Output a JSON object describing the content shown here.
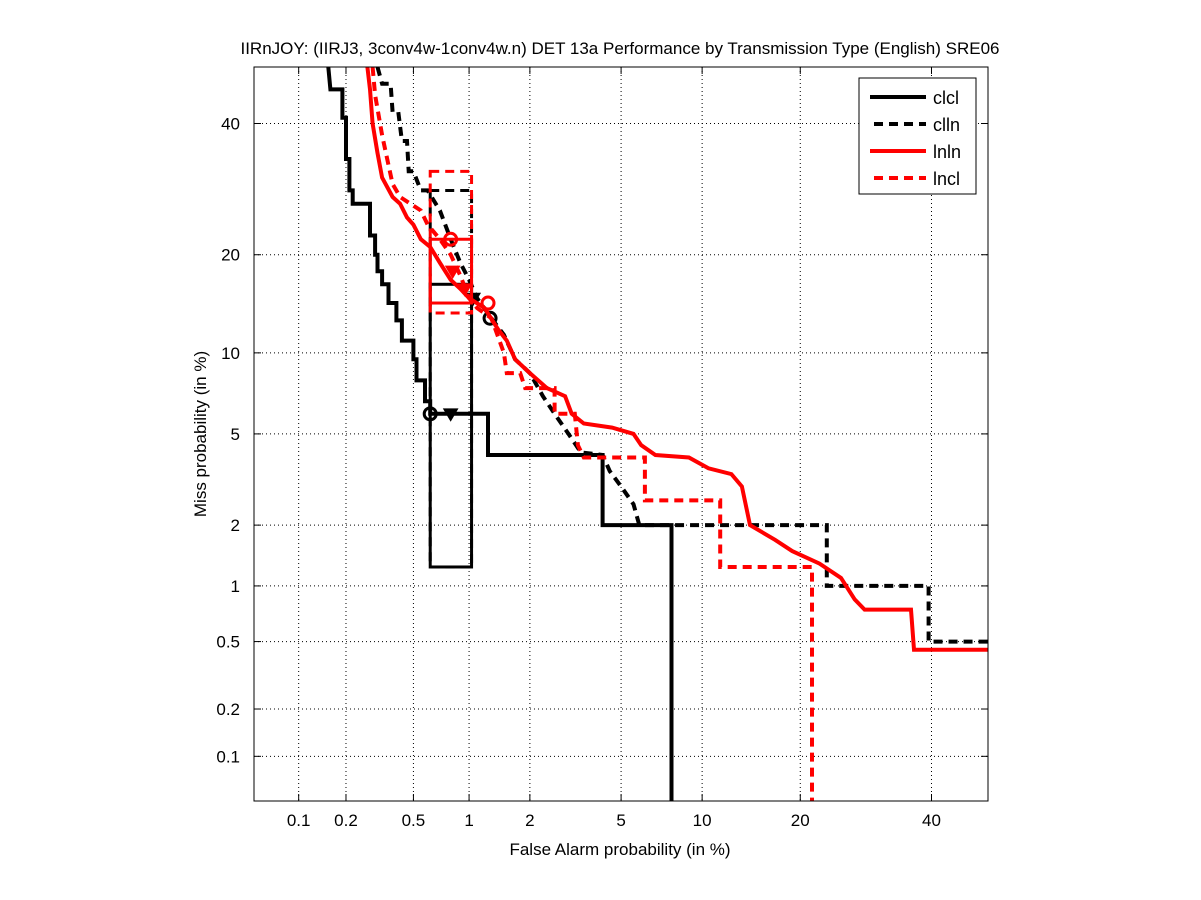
{
  "chart_data": {
    "type": "line",
    "title": "IIRnJOY: (IIRJ3, 3conv4w-1conv4w.n) DET 13a Performance by Transmission Type (English) SRE06",
    "xlabel": "False Alarm probability (in %)",
    "ylabel": "Miss probability (in %)",
    "xscale": "probit",
    "yscale": "probit",
    "xlim": [
      0.05,
      50
    ],
    "ylim": [
      0.05,
      50
    ],
    "grid": true,
    "legend_position": "top-right",
    "xticks": [
      0.1,
      0.2,
      0.5,
      1,
      2,
      5,
      10,
      20,
      40
    ],
    "xtick_labels": [
      "0.1",
      "0.2",
      "0.5",
      "1",
      "2",
      "5",
      "10",
      "20",
      "40"
    ],
    "yticks": [
      0.1,
      0.2,
      0.5,
      1,
      2,
      5,
      10,
      20,
      40
    ],
    "ytick_labels": [
      "0.1",
      "0.2",
      "0.5",
      "1",
      "2",
      "5",
      "10",
      "20",
      "40"
    ],
    "series": [
      {
        "name": "clcl",
        "color": "#000000",
        "dash": "solid",
        "points": [
          [
            0.155,
            50
          ],
          [
            0.16,
            46
          ],
          [
            0.19,
            46
          ],
          [
            0.19,
            41
          ],
          [
            0.2,
            41
          ],
          [
            0.2,
            34
          ],
          [
            0.21,
            34
          ],
          [
            0.21,
            29
          ],
          [
            0.22,
            29
          ],
          [
            0.22,
            27
          ],
          [
            0.28,
            27
          ],
          [
            0.28,
            22.5
          ],
          [
            0.3,
            22.5
          ],
          [
            0.3,
            20
          ],
          [
            0.31,
            20
          ],
          [
            0.31,
            18
          ],
          [
            0.33,
            18
          ],
          [
            0.33,
            16.5
          ],
          [
            0.36,
            16.5
          ],
          [
            0.36,
            14.5
          ],
          [
            0.4,
            14.5
          ],
          [
            0.4,
            12.8
          ],
          [
            0.43,
            12.8
          ],
          [
            0.43,
            11
          ],
          [
            0.5,
            11
          ],
          [
            0.5,
            9.5
          ],
          [
            0.52,
            9.5
          ],
          [
            0.52,
            8
          ],
          [
            0.58,
            8
          ],
          [
            0.58,
            6.7
          ],
          [
            0.62,
            6.7
          ],
          [
            0.62,
            6
          ],
          [
            1.25,
            6
          ],
          [
            1.25,
            4.1
          ],
          [
            4.2,
            4.1
          ],
          [
            4.2,
            2
          ],
          [
            7.8,
            2
          ],
          [
            7.8,
            0.05
          ]
        ],
        "markers": [
          {
            "x": 0.62,
            "y": 6,
            "shape": "circle"
          },
          {
            "x": 0.8,
            "y": 6,
            "shape": "triangle-down"
          }
        ],
        "confidence_box": {
          "x": [
            0.62,
            1.03
          ],
          "y": [
            1.25,
            16.5
          ]
        }
      },
      {
        "name": "clln",
        "color": "#000000",
        "dash": "dashed",
        "points": [
          [
            0.31,
            50
          ],
          [
            0.33,
            47
          ],
          [
            0.37,
            47
          ],
          [
            0.38,
            42
          ],
          [
            0.41,
            42
          ],
          [
            0.43,
            37
          ],
          [
            0.46,
            37
          ],
          [
            0.47,
            32
          ],
          [
            0.5,
            32
          ],
          [
            0.55,
            29
          ],
          [
            0.6,
            29
          ],
          [
            0.7,
            26
          ],
          [
            0.8,
            22
          ],
          [
            0.9,
            19
          ],
          [
            1.0,
            17
          ],
          [
            1.1,
            15
          ],
          [
            1.3,
            13
          ],
          [
            1.5,
            11.5
          ],
          [
            1.7,
            9.5
          ],
          [
            2.0,
            8.5
          ],
          [
            2.3,
            7
          ],
          [
            2.6,
            6
          ],
          [
            3.0,
            5
          ],
          [
            3.4,
            4.2
          ],
          [
            4.2,
            4.1
          ],
          [
            4.5,
            3.5
          ],
          [
            5.0,
            3
          ],
          [
            5.6,
            2.5
          ],
          [
            5.9,
            2
          ],
          [
            23.5,
            2
          ],
          [
            23.5,
            1.0
          ],
          [
            39.5,
            1.0
          ],
          [
            39.5,
            0.5
          ],
          [
            50,
            0.5
          ]
        ],
        "markers": [
          {
            "x": 1.28,
            "y": 13,
            "shape": "circle"
          },
          {
            "x": 1.05,
            "y": 15,
            "shape": "triangle-down"
          }
        ],
        "confidence_box": {
          "x": [
            0.62,
            1.03
          ],
          "y": [
            1.25,
            29
          ]
        }
      },
      {
        "name": "lnln",
        "color": "#ff0000",
        "dash": "solid",
        "points": [
          [
            0.27,
            50
          ],
          [
            0.28,
            46
          ],
          [
            0.29,
            40
          ],
          [
            0.31,
            35
          ],
          [
            0.33,
            31
          ],
          [
            0.38,
            28
          ],
          [
            0.42,
            27
          ],
          [
            0.46,
            25
          ],
          [
            0.5,
            24
          ],
          [
            0.55,
            22
          ],
          [
            0.62,
            21
          ],
          [
            0.7,
            19
          ],
          [
            0.8,
            17
          ],
          [
            0.9,
            16
          ],
          [
            1.0,
            15
          ],
          [
            1.2,
            14
          ],
          [
            1.4,
            12
          ],
          [
            1.55,
            11
          ],
          [
            1.7,
            9.5
          ],
          [
            2.0,
            8.5
          ],
          [
            2.4,
            7.5
          ],
          [
            2.9,
            7
          ],
          [
            3.1,
            6
          ],
          [
            3.5,
            5.5
          ],
          [
            4.6,
            5.3
          ],
          [
            5.6,
            5
          ],
          [
            6.0,
            4.5
          ],
          [
            6.8,
            4.1
          ],
          [
            9.0,
            4
          ],
          [
            10.5,
            3.6
          ],
          [
            12.5,
            3.4
          ],
          [
            13.5,
            3
          ],
          [
            14.3,
            2
          ],
          [
            17,
            1.7
          ],
          [
            19,
            1.5
          ],
          [
            22.5,
            1.3
          ],
          [
            25.5,
            1.1
          ],
          [
            27.5,
            0.85
          ],
          [
            29,
            0.75
          ],
          [
            36.5,
            0.75
          ],
          [
            37,
            0.45
          ],
          [
            50,
            0.45
          ]
        ],
        "markers": [
          {
            "x": 0.8,
            "y": 22,
            "shape": "circle"
          },
          {
            "x": 0.82,
            "y": 18,
            "shape": "triangle-down"
          }
        ],
        "confidence_box": {
          "x": [
            0.62,
            1.03
          ],
          "y": [
            14.5,
            22
          ]
        }
      },
      {
        "name": "lncl",
        "color": "#ff0000",
        "dash": "dashed",
        "points": [
          [
            0.29,
            50
          ],
          [
            0.3,
            45
          ],
          [
            0.33,
            38
          ],
          [
            0.36,
            33
          ],
          [
            0.38,
            30
          ],
          [
            0.42,
            28
          ],
          [
            0.48,
            27
          ],
          [
            0.55,
            26
          ],
          [
            0.6,
            24
          ],
          [
            0.7,
            22
          ],
          [
            0.8,
            20
          ],
          [
            0.9,
            17.5
          ],
          [
            1.0,
            15
          ],
          [
            1.1,
            14
          ],
          [
            1.3,
            13
          ],
          [
            1.5,
            10
          ],
          [
            1.55,
            8.5
          ],
          [
            1.8,
            8.5
          ],
          [
            1.9,
            7.5
          ],
          [
            2.6,
            7.5
          ],
          [
            2.6,
            6
          ],
          [
            3.2,
            6
          ],
          [
            3.3,
            4.5
          ],
          [
            3.5,
            4.0
          ],
          [
            6.2,
            4.0
          ],
          [
            6.2,
            2.6
          ],
          [
            11.5,
            2.6
          ],
          [
            11.5,
            1.25
          ],
          [
            21.5,
            1.25
          ],
          [
            21.5,
            0.05
          ]
        ],
        "markers": [
          {
            "x": 1.25,
            "y": 14.5,
            "shape": "circle"
          },
          {
            "x": 0.95,
            "y": 16,
            "shape": "triangle-down"
          }
        ],
        "confidence_box": {
          "x": [
            0.62,
            1.03
          ],
          "y": [
            13.5,
            32
          ]
        }
      }
    ]
  }
}
